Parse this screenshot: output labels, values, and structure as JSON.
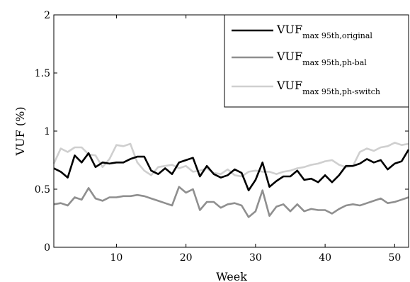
{
  "chart_data": {
    "type": "line",
    "xlabel": "Week",
    "ylabel": "VUF (%)",
    "xlim": [
      1,
      52
    ],
    "ylim": [
      0,
      2
    ],
    "xticks": [
      10,
      20,
      30,
      40,
      50
    ],
    "yticks": [
      0,
      0.5,
      1,
      1.5,
      2
    ],
    "xtick_labels": [
      "10",
      "20",
      "30",
      "40",
      "50"
    ],
    "ytick_labels": [
      "0",
      "0.5",
      "1",
      "1.5",
      "2"
    ],
    "legend_position": "top-right",
    "grid": false,
    "x": [
      1,
      2,
      3,
      4,
      5,
      6,
      7,
      8,
      9,
      10,
      11,
      12,
      13,
      14,
      15,
      16,
      17,
      18,
      19,
      20,
      21,
      22,
      23,
      24,
      25,
      26,
      27,
      28,
      29,
      30,
      31,
      32,
      33,
      34,
      35,
      36,
      37,
      38,
      39,
      40,
      41,
      42,
      43,
      44,
      45,
      46,
      47,
      48,
      49,
      50,
      51,
      52
    ],
    "series": [
      {
        "name_main": "VUF",
        "name_sub": "max 95th,original",
        "color": "#000000",
        "width": 2.6,
        "values": [
          0.68,
          0.65,
          0.6,
          0.79,
          0.73,
          0.81,
          0.69,
          0.73,
          0.72,
          0.73,
          0.73,
          0.76,
          0.78,
          0.78,
          0.66,
          0.63,
          0.68,
          0.63,
          0.73,
          0.75,
          0.77,
          0.61,
          0.7,
          0.63,
          0.6,
          0.62,
          0.67,
          0.64,
          0.49,
          0.58,
          0.73,
          0.52,
          0.57,
          0.61,
          0.61,
          0.66,
          0.58,
          0.59,
          0.56,
          0.62,
          0.56,
          0.62,
          0.7,
          0.7,
          0.72,
          0.76,
          0.73,
          0.75,
          0.67,
          0.72,
          0.74,
          0.84
        ]
      },
      {
        "name_main": "VUF",
        "name_sub": "max 95th,ph-bal",
        "color": "#8f8f8f",
        "width": 2.6,
        "values": [
          0.37,
          0.38,
          0.36,
          0.43,
          0.41,
          0.51,
          0.42,
          0.4,
          0.43,
          0.43,
          0.44,
          0.44,
          0.45,
          0.44,
          0.42,
          0.4,
          0.38,
          0.36,
          0.52,
          0.47,
          0.5,
          0.32,
          0.39,
          0.39,
          0.34,
          0.37,
          0.38,
          0.36,
          0.26,
          0.31,
          0.49,
          0.27,
          0.35,
          0.37,
          0.31,
          0.37,
          0.31,
          0.33,
          0.32,
          0.32,
          0.29,
          0.33,
          0.36,
          0.37,
          0.36,
          0.38,
          0.4,
          0.42,
          0.38,
          0.39,
          0.41,
          0.43
        ]
      },
      {
        "name_main": "VUF",
        "name_sub": "max 95th,ph-switch",
        "color": "#cfcfcf",
        "width": 2.6,
        "values": [
          0.72,
          0.85,
          0.82,
          0.86,
          0.86,
          0.8,
          0.79,
          0.69,
          0.76,
          0.88,
          0.87,
          0.89,
          0.73,
          0.66,
          0.62,
          0.69,
          0.7,
          0.71,
          0.68,
          0.7,
          0.65,
          0.66,
          0.68,
          0.64,
          0.63,
          0.67,
          0.62,
          0.61,
          0.65,
          0.66,
          0.65,
          0.65,
          0.63,
          0.65,
          0.66,
          0.68,
          0.69,
          0.71,
          0.72,
          0.74,
          0.75,
          0.71,
          0.69,
          0.7,
          0.82,
          0.85,
          0.83,
          0.86,
          0.87,
          0.9,
          0.88,
          0.89
        ]
      }
    ]
  }
}
